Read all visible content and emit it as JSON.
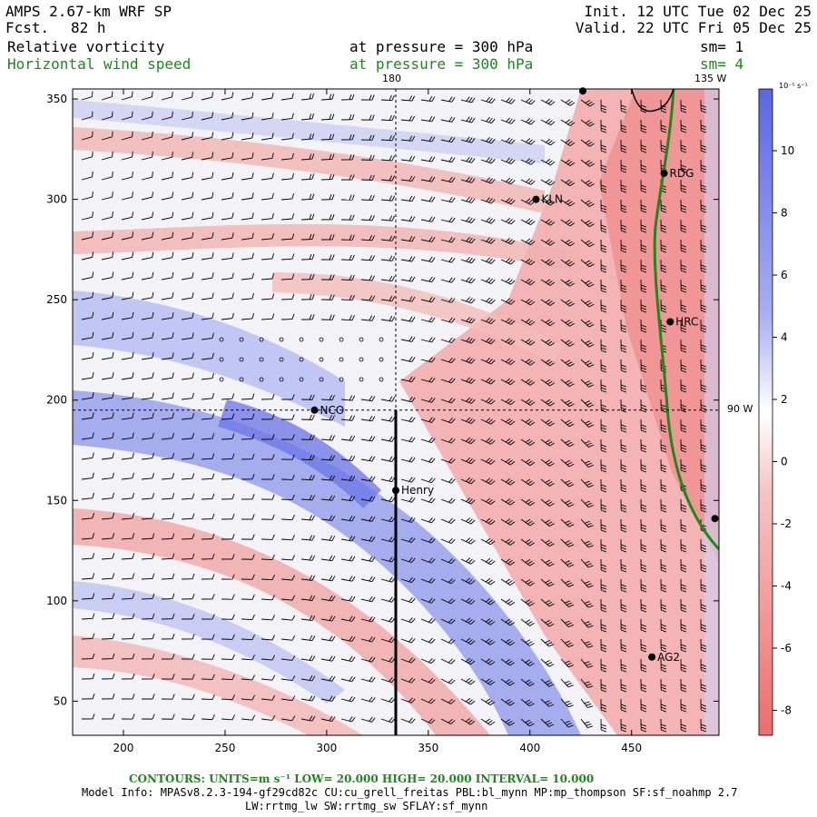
{
  "header": {
    "model": "AMPS 2.67-km WRF SP",
    "fcst_label": "Fcst.",
    "fcst_value": "82 h",
    "init": "Init. 12 UTC Tue 02 Dec 25",
    "valid": "Valid. 22 UTC Fri 05 Dec 25",
    "field1": {
      "name": "Relative vorticity",
      "pressure": "at pressure =  300 hPa",
      "sm": "sm= 1"
    },
    "field2": {
      "name": "Horizontal wind speed",
      "pressure": "at pressure =  300 hPa",
      "sm": "sm= 4"
    }
  },
  "map_labels": {
    "lon_180": "180",
    "lon_135w": "135 W",
    "lat_90w": "90 W"
  },
  "colorbar": {
    "units": "10⁻⁵ s⁻¹",
    "ticks": [
      "10",
      "8",
      "6",
      "4",
      "2",
      "0",
      "-2",
      "-4",
      "-6",
      "-8"
    ],
    "positive_color": "#4a5ae8",
    "negative_color": "#ef6b6b"
  },
  "chart_data": {
    "type": "heatmap",
    "xlim": [
      175,
      493
    ],
    "ylim": [
      33,
      355
    ],
    "x_ticks": [
      200,
      250,
      300,
      350,
      400,
      450
    ],
    "y_ticks": [
      50,
      100,
      150,
      200,
      250,
      300,
      350
    ],
    "stations": [
      {
        "name": "NCO",
        "x": 294,
        "y": 195
      },
      {
        "name": "Henry",
        "x": 334,
        "y": 155
      },
      {
        "name": "KLN",
        "x": 403,
        "y": 300
      },
      {
        "name": "RDG",
        "x": 466,
        "y": 313
      },
      {
        "name": "HRC",
        "x": 469,
        "y": 239
      },
      {
        "name": "AG2",
        "x": 460,
        "y": 72
      }
    ],
    "unlabeled_points": [
      {
        "x": 426,
        "y": 354
      },
      {
        "x": 491,
        "y": 141
      }
    ],
    "crosssection_line": {
      "x": 334,
      "y_from": 33,
      "y_to": 195
    },
    "reference_lines": {
      "lon_180_x": 334,
      "lat_90w_y": 195
    }
  },
  "footer": {
    "contours": "CONTOURS:  UNITS=m s⁻¹  LOW=  20.000      HIGH=  20.000      INTERVAL=   10.000",
    "info1": "Model Info: MPASv8.2.3-194-gf29cd82c CU:cu_grell_freitas PBL:bl_mynn MP:mp_thompson SF:sf_noahmp 2.7",
    "info2": "LW:rrtmg_lw SW:rrtmg_sw SFLAY:sf_mynn"
  }
}
